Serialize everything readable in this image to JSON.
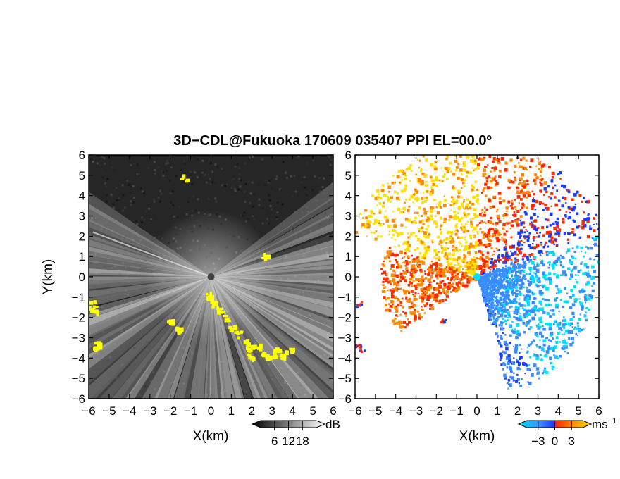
{
  "chart_data": {
    "title": "3D−CDL@Fukuoka 170609 035407 PPI EL=00.0º",
    "panels": [
      {
        "id": "reflectivity",
        "type": "heatmap",
        "variable": "signal intensity",
        "xlabel": "X(km)",
        "ylabel": "Y(km)",
        "xlim": [
          -6,
          6
        ],
        "ylim": [
          -6,
          6
        ],
        "xticks": [
          "−6",
          "−5",
          "−4",
          "−3",
          "−2",
          "−1",
          "0",
          "1",
          "2",
          "3",
          "4",
          "5",
          "6"
        ],
        "yticks": [
          "6",
          "5",
          "4",
          "3",
          "2",
          "1",
          "0",
          "−1",
          "−2",
          "−3",
          "−4",
          "−5",
          "−6"
        ],
        "background_color": "#262626",
        "highlight_color": "#ffff00",
        "colorbar": {
          "ticks": [
            "6",
            "12",
            "18"
          ],
          "tick_values": [
            6,
            12,
            18
          ],
          "range": [
            0,
            24
          ],
          "unit": "dB",
          "colors": [
            "#000000",
            "#ffffff"
          ]
        }
      },
      {
        "id": "doppler-velocity",
        "type": "heatmap",
        "variable": "radial velocity",
        "xlabel": "X(km)",
        "xlim": [
          -6,
          6
        ],
        "ylim": [
          -6,
          6
        ],
        "xticks": [
          "−6",
          "−5",
          "−4",
          "−3",
          "−2",
          "−1",
          "0",
          "1",
          "2",
          "3",
          "4",
          "5",
          "6"
        ],
        "yticks": [
          "6",
          "5",
          "4",
          "3",
          "2",
          "1",
          "0",
          "−1",
          "−2",
          "−3",
          "−4",
          "−5",
          "−6"
        ],
        "background_color": "#ffffff",
        "colorbar": {
          "ticks": [
            "−3",
            "0",
            "3"
          ],
          "tick_values": [
            -3,
            0,
            3
          ],
          "range": [
            -5,
            5
          ],
          "unit": "ms",
          "unit_exponent": "−1",
          "colors": [
            "#00e0ff",
            "#3a8cff",
            "#1a3cff",
            "#ff2a00",
            "#ff8a00",
            "#ffe000"
          ]
        }
      }
    ]
  }
}
